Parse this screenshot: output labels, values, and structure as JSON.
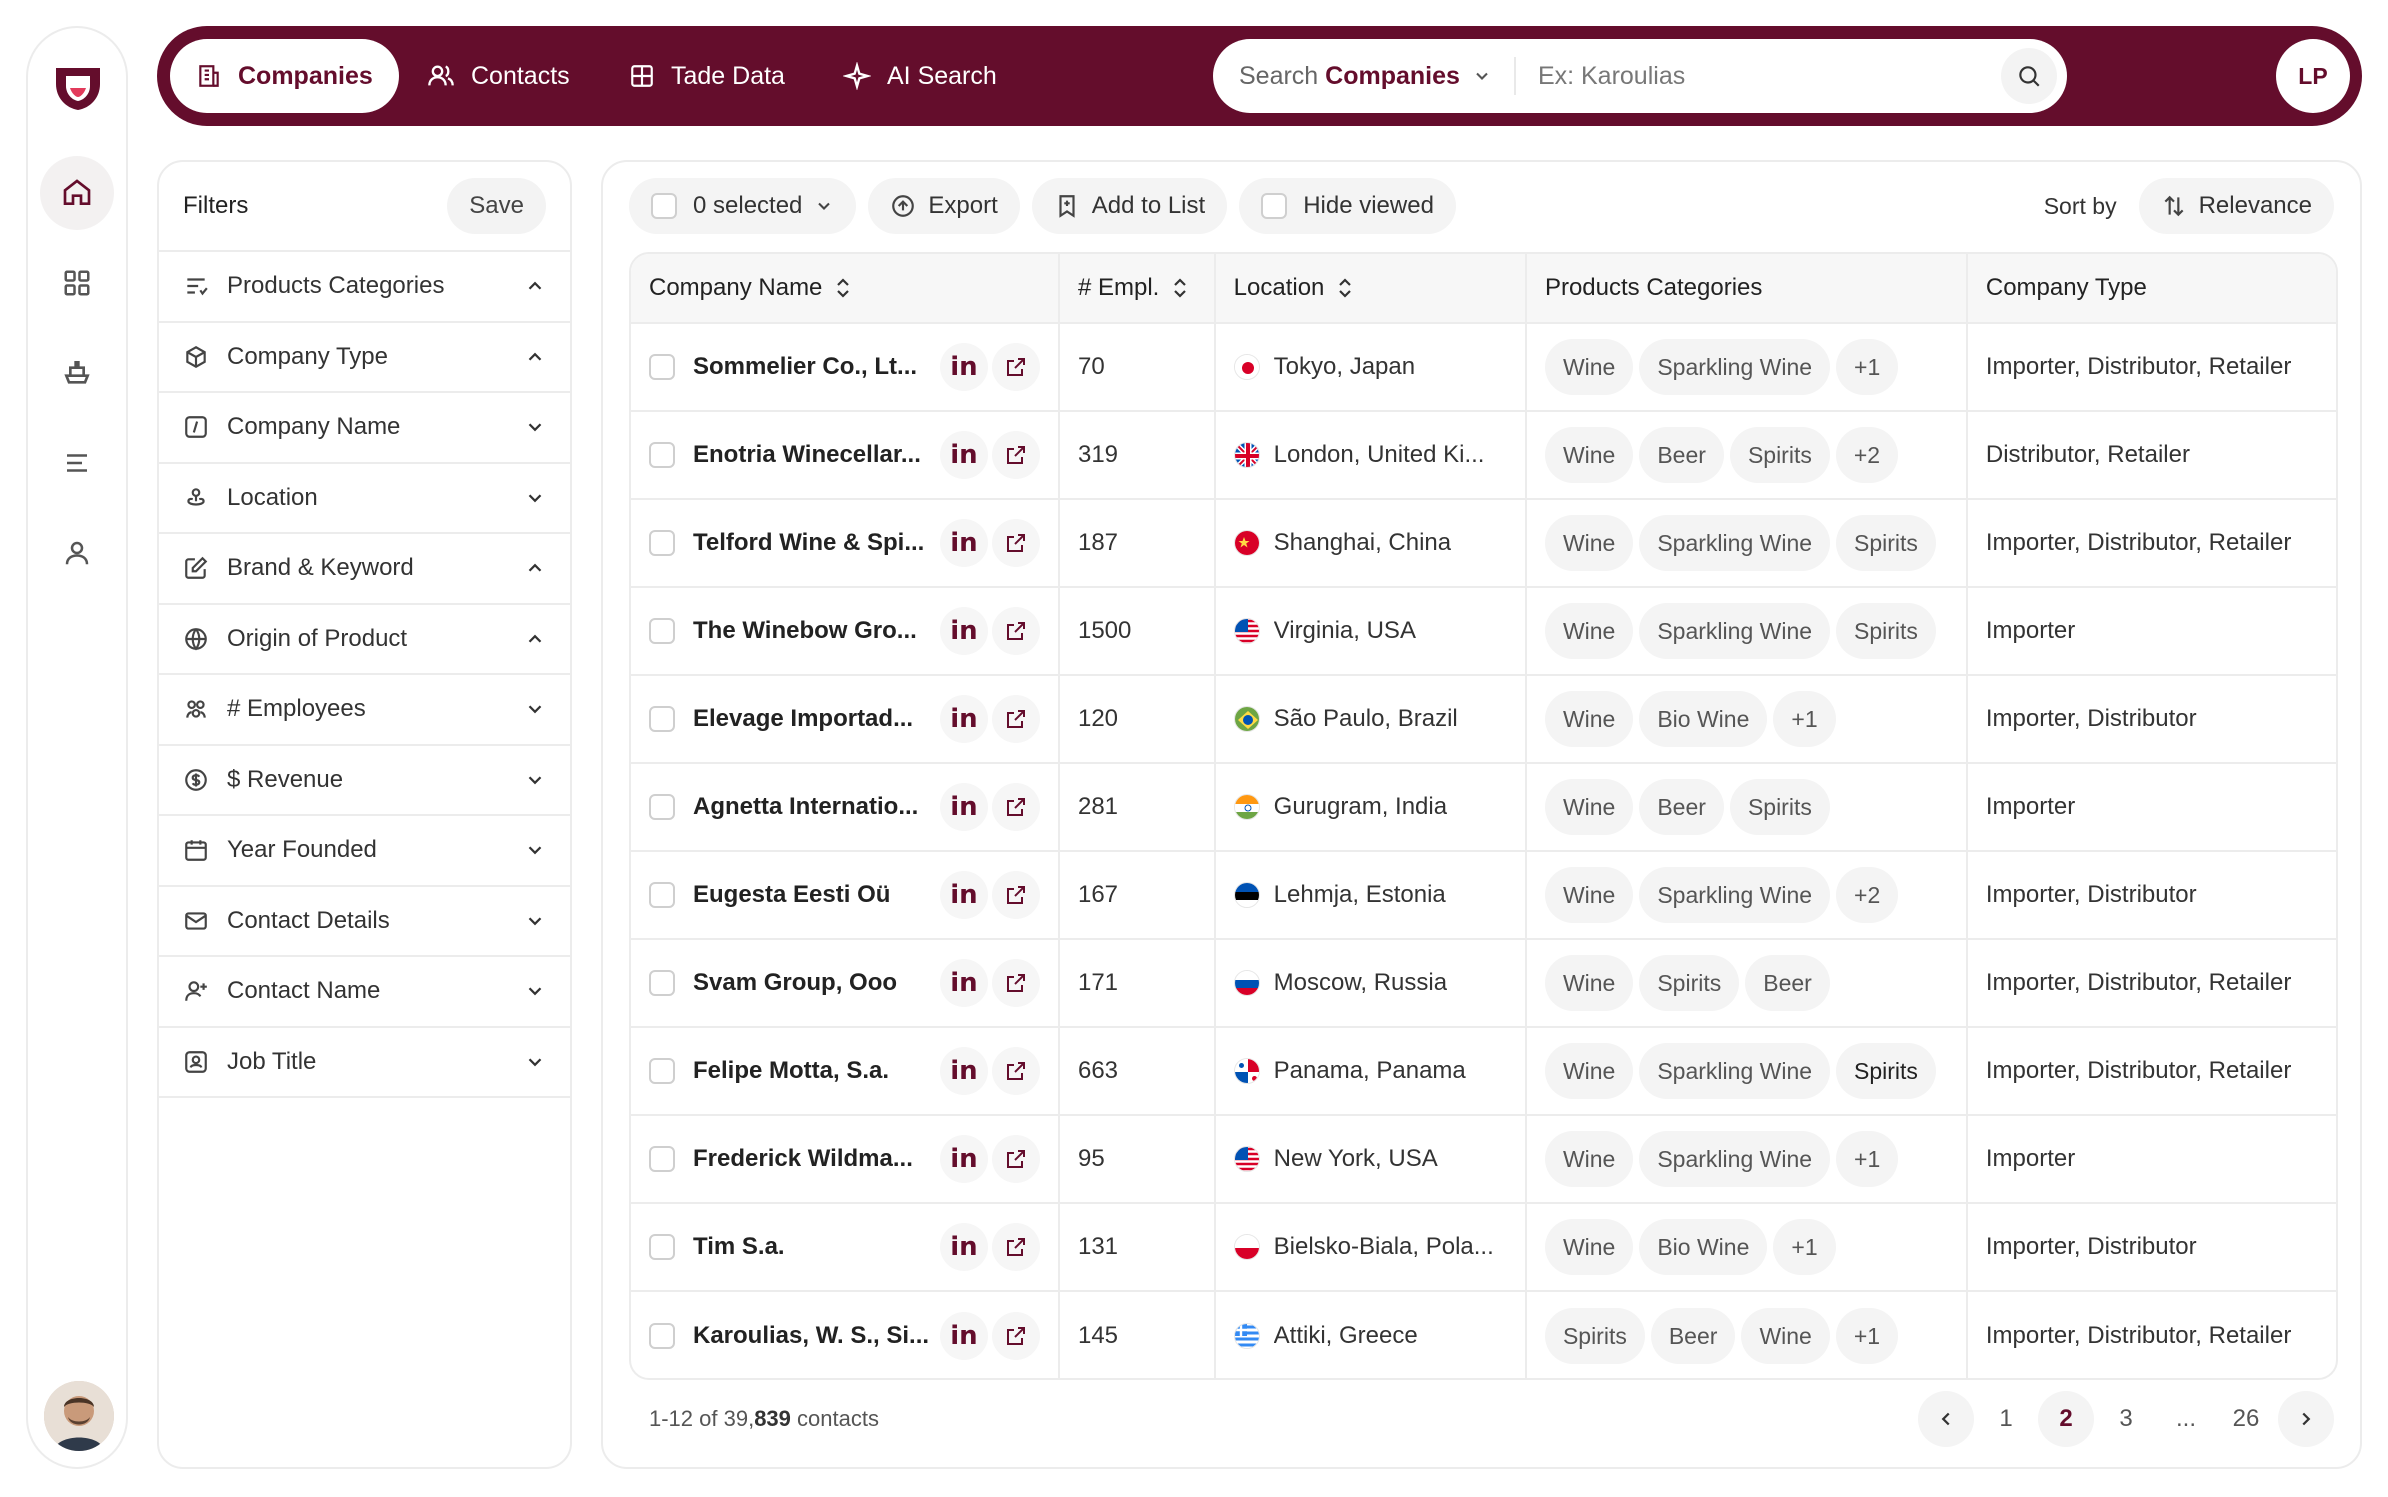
{
  "nav": {
    "tabs": [
      {
        "label": "Companies",
        "icon": "building-icon",
        "active": true
      },
      {
        "label": "Contacts",
        "icon": "users-icon"
      },
      {
        "label": "Tade Data",
        "icon": "grid-icon"
      },
      {
        "label": "AI Search",
        "icon": "sparkle-icon"
      }
    ],
    "search": {
      "scope_prefix": "Search",
      "scope": "Companies",
      "placeholder": "Ex: Karoulias"
    },
    "user_initials": "LP"
  },
  "filters": {
    "title": "Filters",
    "save_label": "Save",
    "items": [
      {
        "label": "Products Categories",
        "icon": "list-filter-icon",
        "expanded": true
      },
      {
        "label": "Company Type",
        "icon": "cube-icon",
        "expanded": true
      },
      {
        "label": "Company Name",
        "icon": "italic-box-icon",
        "expanded": false
      },
      {
        "label": "Location",
        "icon": "map-pin-icon",
        "expanded": false
      },
      {
        "label": "Brand & Keyword",
        "icon": "edit-icon",
        "expanded": true
      },
      {
        "label": "Origin of Product",
        "icon": "globe-icon",
        "expanded": true
      },
      {
        "label": "# Employees",
        "icon": "people-icon",
        "expanded": false
      },
      {
        "label": "$ Revenue",
        "icon": "dollar-icon",
        "expanded": false
      },
      {
        "label": "Year Founded",
        "icon": "calendar-icon",
        "expanded": false
      },
      {
        "label": "Contact Details",
        "icon": "mail-icon",
        "expanded": false
      },
      {
        "label": "Contact Name",
        "icon": "user-plus-icon",
        "expanded": false
      },
      {
        "label": "Job Title",
        "icon": "id-card-icon",
        "expanded": false
      }
    ]
  },
  "toolbar": {
    "selected_label": "0 selected",
    "export_label": "Export",
    "add_to_list_label": "Add to List",
    "hide_viewed_label": "Hide viewed",
    "sort_by_label": "Sort by",
    "sort_value": "Relevance"
  },
  "table": {
    "columns": [
      "Company Name",
      "# Empl.",
      "Location",
      "Products Categories",
      "Company Type"
    ],
    "rows": [
      {
        "name": "Sommelier Co., Lt...",
        "empl": "70",
        "flag": "jp",
        "location": "Tokyo, Japan",
        "tags": [
          "Wine",
          "Sparkling Wine",
          "+1"
        ],
        "type": "Importer, Distributor, Retailer"
      },
      {
        "name": "Enotria Winecellar...",
        "empl": "319",
        "flag": "gb",
        "location": "London, United Ki...",
        "tags": [
          "Wine",
          "Beer",
          "Spirits",
          "+2"
        ],
        "type": "Distributor, Retailer"
      },
      {
        "name": "Telford Wine & Spi...",
        "empl": "187",
        "flag": "cn",
        "location": "Shanghai, China",
        "tags": [
          "Wine",
          "Sparkling Wine",
          "Spirits"
        ],
        "type": "Importer, Distributor, Retailer"
      },
      {
        "name": "The Winebow Gro...",
        "empl": "1500",
        "flag": "us",
        "location": "Virginia, USA",
        "tags": [
          "Wine",
          "Sparkling Wine",
          "Spirits"
        ],
        "type": "Importer"
      },
      {
        "name": "Elevage Importad...",
        "empl": "120",
        "flag": "br",
        "location": "São Paulo, Brazil",
        "tags": [
          "Wine",
          "Bio Wine",
          "+1"
        ],
        "type": "Importer, Distributor"
      },
      {
        "name": "Agnetta Internatio...",
        "empl": "281",
        "flag": "in",
        "location": "Gurugram, India",
        "tags": [
          "Wine",
          "Beer",
          "Spirits"
        ],
        "type": "Importer"
      },
      {
        "name": "Eugesta Eesti Oü",
        "empl": "167",
        "flag": "ee",
        "location": "Lehmja, Estonia",
        "tags": [
          "Wine",
          "Sparkling Wine",
          "+2"
        ],
        "type": "Importer, Distributor"
      },
      {
        "name": "Svam Group, Ooo",
        "empl": "171",
        "flag": "ru",
        "location": "Moscow, Russia",
        "tags": [
          "Wine",
          "Spirits",
          "Beer"
        ],
        "type": "Importer, Distributor, Retailer"
      },
      {
        "name": "Felipe Motta, S.a.",
        "empl": "663",
        "flag": "pa",
        "location": "Panama, Panama",
        "tags": [
          "Wine",
          "Sparkling Wine",
          "Spirits"
        ],
        "type": "Importer, Distributor, Retailer"
      },
      {
        "name": "Frederick Wildma...",
        "empl": "95",
        "flag": "us",
        "location": "New York, USA",
        "tags": [
          "Wine",
          "Sparkling Wine",
          "+1"
        ],
        "type": "Importer"
      },
      {
        "name": "Tim S.a.",
        "empl": "131",
        "flag": "pl",
        "location": "Bielsko-Biala, Pola...",
        "tags": [
          "Wine",
          "Bio Wine",
          "+1"
        ],
        "type": "Importer, Distributor"
      },
      {
        "name": "Karoulias, W. S., Si...",
        "empl": "145",
        "flag": "gr",
        "location": "Attiki, Greece",
        "tags": [
          "Spirits",
          "Beer",
          "Wine",
          "+1"
        ],
        "type": "Importer, Distributor, Retailer"
      }
    ]
  },
  "footer": {
    "range": "1-12 of 39,",
    "total_bold": "839",
    "suffix": " contacts",
    "pages": [
      "1",
      "2",
      "3",
      "...",
      "26"
    ],
    "current_page": "2"
  },
  "colors": {
    "brand": "#640d2c",
    "border": "#ececec",
    "chip": "#f4f4f4"
  }
}
